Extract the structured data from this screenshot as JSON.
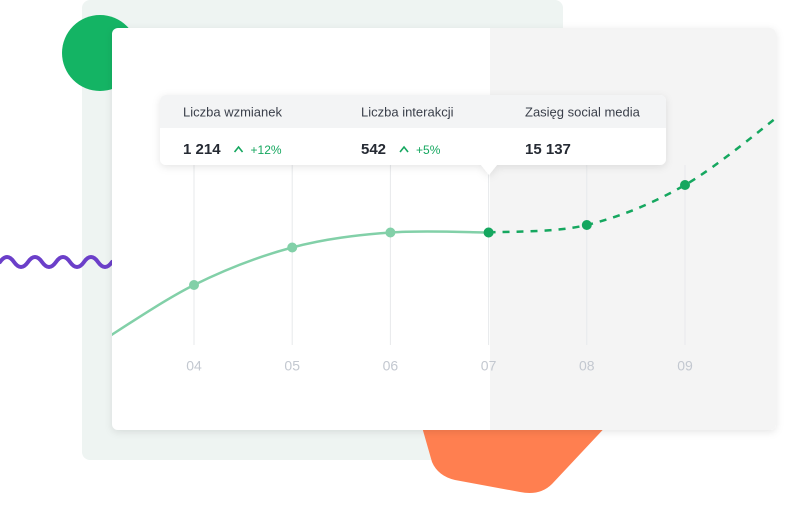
{
  "tooltip": {
    "items": [
      {
        "label": "Liczba wzmianek",
        "value": "1 214",
        "change": "+12%"
      },
      {
        "label": "Liczba interakcji",
        "value": "542",
        "change": "+5%"
      },
      {
        "label": "Zasięg social media",
        "value": "15 137"
      }
    ]
  },
  "chart_data": {
    "type": "line",
    "categories": [
      "04",
      "05",
      "06",
      "07",
      "08",
      "09"
    ],
    "ylim": [
      0,
      100
    ],
    "series": [
      {
        "color": "#82d0a8",
        "dash": false,
        "values": [
          24,
          39,
          45,
          45,
          null,
          null
        ]
      },
      {
        "color": "#15a75f",
        "dash": true,
        "values": [
          null,
          null,
          null,
          45,
          48,
          64
        ]
      }
    ]
  }
}
